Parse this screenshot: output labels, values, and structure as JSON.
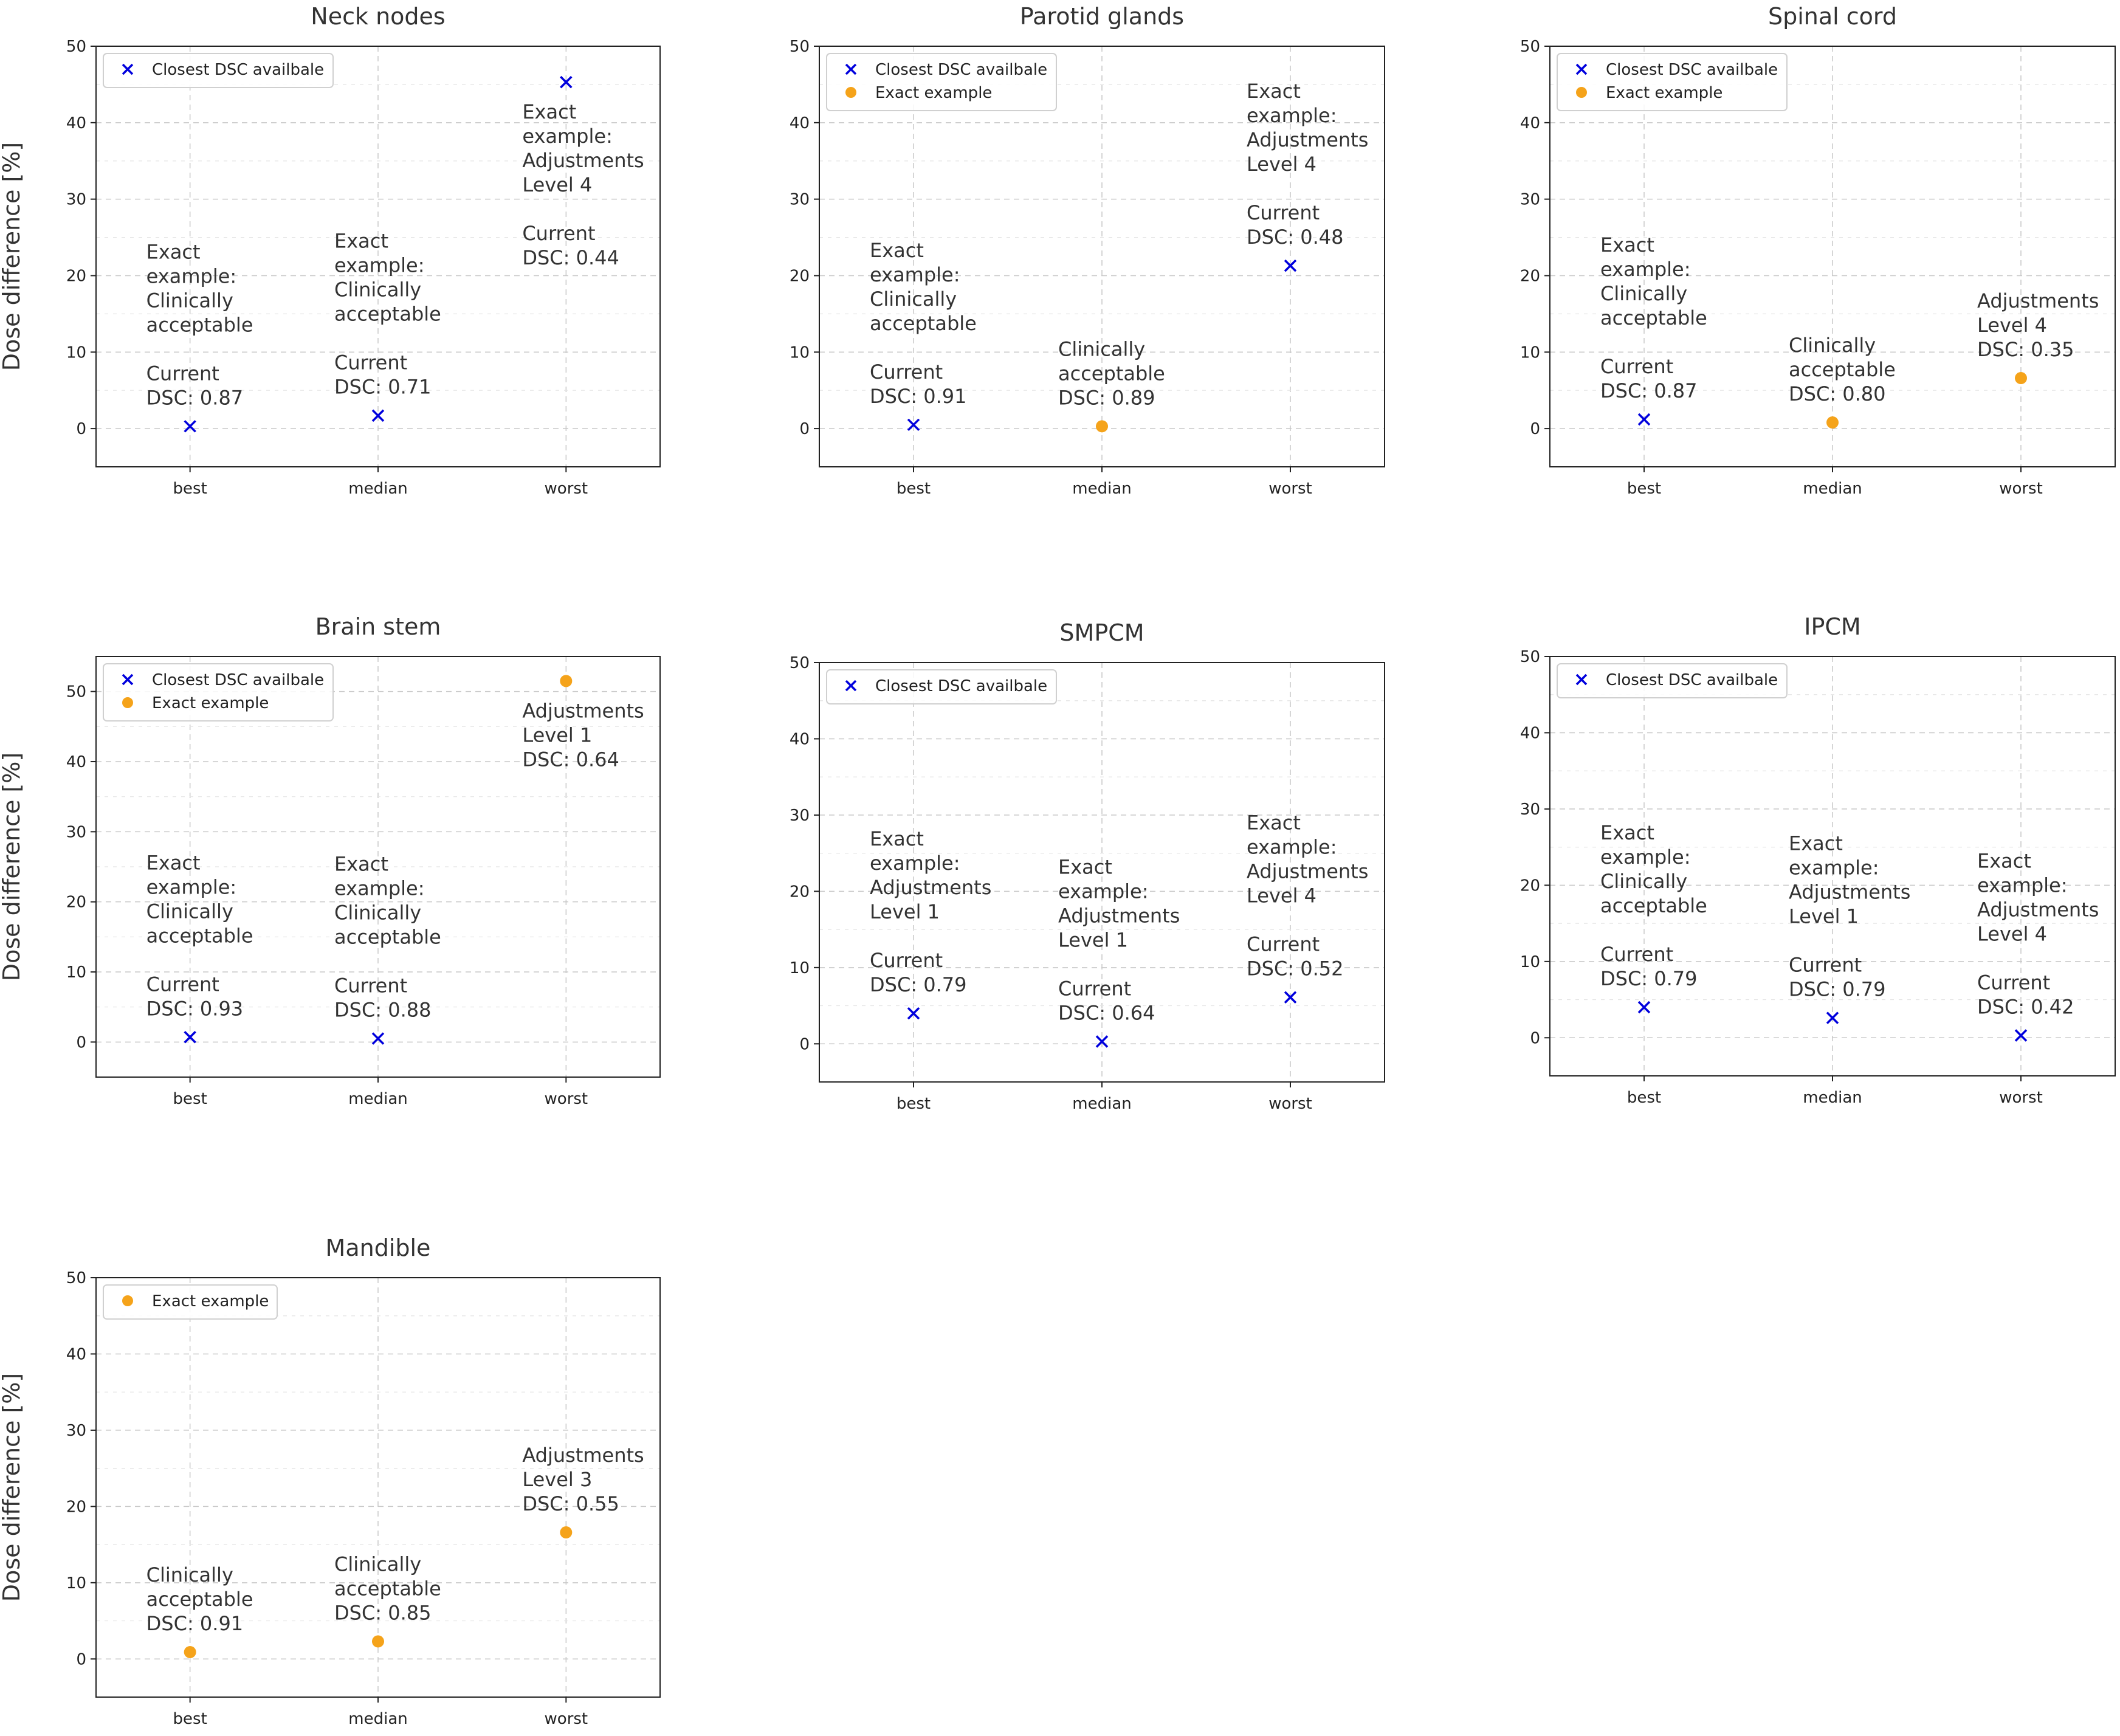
{
  "figure": {
    "ylabel": "Dose difference [%]",
    "legend_labels": {
      "closest": "Closest DSC availbale",
      "exact": "Exact example"
    },
    "colors": {
      "closest": "#0000dd",
      "exact": "#f5a31a",
      "grid": "#c8c8c8",
      "axis": "#222222"
    }
  },
  "chart_data": [
    {
      "type": "scatter",
      "title": "Neck nodes",
      "categories": [
        "best",
        "median",
        "worst"
      ],
      "ylim": [
        -5,
        50
      ],
      "yticks": [
        "0",
        "10",
        "20",
        "30",
        "40",
        "50"
      ],
      "grid": true,
      "legend": [
        "closest"
      ],
      "legend_placement": "top-left",
      "points": [
        {
          "x": "best",
          "y": 0.3,
          "series": "closest"
        },
        {
          "x": "median",
          "y": 1.7,
          "series": "closest"
        },
        {
          "x": "worst",
          "y": 45.3,
          "series": "closest"
        }
      ],
      "annotations": [
        {
          "x": "best",
          "lines": [
            "Exact",
            "example:",
            "Clinically",
            "acceptable",
            "",
            "Current",
            "DSC: 0.87"
          ]
        },
        {
          "x": "median",
          "lines": [
            "Exact",
            "example:",
            "Clinically",
            "acceptable",
            "",
            "Current",
            "DSC: 0.71"
          ]
        },
        {
          "x": "worst",
          "lines": [
            "Exact",
            "example:",
            "Adjustments",
            "Level 4",
            "",
            "Current",
            "DSC: 0.44"
          ]
        }
      ]
    },
    {
      "type": "scatter",
      "title": "Parotid glands",
      "categories": [
        "best",
        "median",
        "worst"
      ],
      "ylim": [
        -5,
        50
      ],
      "yticks": [
        "0",
        "10",
        "20",
        "30",
        "40",
        "50"
      ],
      "grid": true,
      "legend": [
        "closest",
        "exact"
      ],
      "legend_placement": "top-left",
      "points": [
        {
          "x": "best",
          "y": 0.5,
          "series": "closest"
        },
        {
          "x": "median",
          "y": 0.3,
          "series": "exact"
        },
        {
          "x": "worst",
          "y": 21.3,
          "series": "closest"
        }
      ],
      "annotations": [
        {
          "x": "best",
          "lines": [
            "Exact",
            "example:",
            "Clinically",
            "acceptable",
            "",
            "Current",
            "DSC: 0.91"
          ]
        },
        {
          "x": "median",
          "lines": [
            "Clinically",
            "acceptable",
            "DSC: 0.89"
          ]
        },
        {
          "x": "worst",
          "lines": [
            "Exact",
            "example:",
            "Adjustments",
            "Level 4",
            "",
            "Current",
            "DSC: 0.48"
          ]
        }
      ]
    },
    {
      "type": "scatter",
      "title": "Spinal cord",
      "categories": [
        "best",
        "median",
        "worst"
      ],
      "ylim": [
        -5,
        50
      ],
      "yticks": [
        "0",
        "10",
        "20",
        "30",
        "40",
        "50"
      ],
      "grid": true,
      "legend": [
        "closest",
        "exact"
      ],
      "legend_placement": "top-left",
      "points": [
        {
          "x": "best",
          "y": 1.2,
          "series": "closest"
        },
        {
          "x": "median",
          "y": 0.8,
          "series": "exact"
        },
        {
          "x": "worst",
          "y": 6.6,
          "series": "exact"
        }
      ],
      "annotations": [
        {
          "x": "best",
          "lines": [
            "Exact",
            "example:",
            "Clinically",
            "acceptable",
            "",
            "Current",
            "DSC: 0.87"
          ]
        },
        {
          "x": "median",
          "lines": [
            "Clinically",
            "acceptable",
            "DSC: 0.80"
          ]
        },
        {
          "x": "worst",
          "lines": [
            "Adjustments",
            "Level 4",
            "DSC: 0.35"
          ]
        }
      ]
    },
    {
      "type": "scatter",
      "title": "Brain stem",
      "categories": [
        "best",
        "median",
        "worst"
      ],
      "ylim": [
        -5,
        55
      ],
      "yticks": [
        "0",
        "10",
        "20",
        "30",
        "40",
        "50"
      ],
      "grid": true,
      "legend": [
        "closest",
        "exact"
      ],
      "legend_placement": "top-left",
      "points": [
        {
          "x": "best",
          "y": 0.7,
          "series": "closest"
        },
        {
          "x": "median",
          "y": 0.5,
          "series": "closest"
        },
        {
          "x": "worst",
          "y": 51.5,
          "series": "exact"
        }
      ],
      "annotations": [
        {
          "x": "best",
          "lines": [
            "Exact",
            "example:",
            "Clinically",
            "acceptable",
            "",
            "Current",
            "DSC: 0.93"
          ]
        },
        {
          "x": "median",
          "lines": [
            "Exact",
            "example:",
            "Clinically",
            "acceptable",
            "",
            "Current",
            "DSC: 0.88"
          ]
        },
        {
          "x": "worst",
          "lines": [
            "Adjustments",
            "Level 1",
            "DSC: 0.64"
          ]
        }
      ]
    },
    {
      "type": "scatter",
      "title": "SMPCM",
      "categories": [
        "best",
        "median",
        "worst"
      ],
      "ylim": [
        -5,
        50
      ],
      "yticks": [
        "0",
        "10",
        "20",
        "30",
        "40",
        "50"
      ],
      "grid": true,
      "legend": [
        "closest"
      ],
      "legend_placement": "top-left",
      "points": [
        {
          "x": "best",
          "y": 4.0,
          "series": "closest"
        },
        {
          "x": "median",
          "y": 0.3,
          "series": "closest"
        },
        {
          "x": "worst",
          "y": 6.1,
          "series": "closest"
        }
      ],
      "annotations": [
        {
          "x": "best",
          "lines": [
            "Exact",
            "example:",
            "Adjustments",
            "Level 1",
            "",
            "Current",
            "DSC: 0.79"
          ]
        },
        {
          "x": "median",
          "lines": [
            "Exact",
            "example:",
            "Adjustments",
            "Level 1",
            "",
            "Current",
            "DSC: 0.64"
          ]
        },
        {
          "x": "worst",
          "lines": [
            "Exact",
            "example:",
            "Adjustments",
            "Level 4",
            "",
            "Current",
            "DSC: 0.52"
          ]
        }
      ]
    },
    {
      "type": "scatter",
      "title": "IPCM",
      "categories": [
        "best",
        "median",
        "worst"
      ],
      "ylim": [
        -5,
        50
      ],
      "yticks": [
        "0",
        "10",
        "20",
        "30",
        "40",
        "50"
      ],
      "grid": true,
      "legend": [
        "closest"
      ],
      "legend_placement": "top-left",
      "points": [
        {
          "x": "best",
          "y": 4.0,
          "series": "closest"
        },
        {
          "x": "median",
          "y": 2.6,
          "series": "closest"
        },
        {
          "x": "worst",
          "y": 0.3,
          "series": "closest"
        }
      ],
      "annotations": [
        {
          "x": "best",
          "lines": [
            "Exact",
            "example:",
            "Clinically",
            "acceptable",
            "",
            "Current",
            "DSC: 0.79"
          ]
        },
        {
          "x": "median",
          "lines": [
            "Exact",
            "example:",
            "Adjustments",
            "Level 1",
            "",
            "Current",
            "DSC: 0.79"
          ]
        },
        {
          "x": "worst",
          "lines": [
            "Exact",
            "example:",
            "Adjustments",
            "Level 4",
            "",
            "Current",
            "DSC: 0.42"
          ]
        }
      ]
    },
    {
      "type": "scatter",
      "title": "Mandible",
      "categories": [
        "best",
        "median",
        "worst"
      ],
      "ylim": [
        -5,
        50
      ],
      "yticks": [
        "0",
        "10",
        "20",
        "30",
        "40",
        "50"
      ],
      "grid": true,
      "legend": [
        "exact"
      ],
      "legend_placement": "top-left",
      "points": [
        {
          "x": "best",
          "y": 0.9,
          "series": "exact"
        },
        {
          "x": "median",
          "y": 2.3,
          "series": "exact"
        },
        {
          "x": "worst",
          "y": 16.6,
          "series": "exact"
        }
      ],
      "annotations": [
        {
          "x": "best",
          "lines": [
            "Clinically",
            "acceptable",
            "DSC: 0.91"
          ]
        },
        {
          "x": "median",
          "lines": [
            "Clinically",
            "acceptable",
            "DSC: 0.85"
          ]
        },
        {
          "x": "worst",
          "lines": [
            "Adjustments",
            "Level 3",
            "DSC: 0.55"
          ]
        }
      ]
    }
  ]
}
